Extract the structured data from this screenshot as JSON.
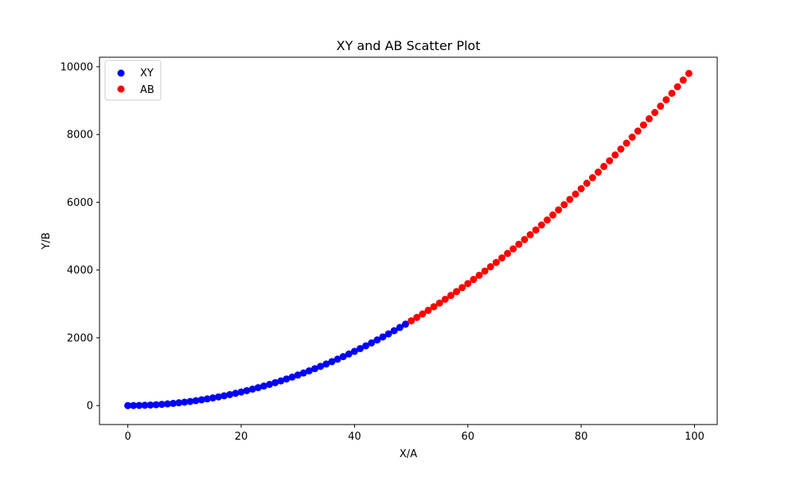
{
  "chart_data": {
    "type": "scatter",
    "title": "XY and AB Scatter Plot",
    "xlabel": "X/A",
    "ylabel": "Y/B",
    "xlim": [
      -5,
      104
    ],
    "ylim": [
      -560,
      10280
    ],
    "xticks": [
      0,
      20,
      40,
      60,
      80,
      100
    ],
    "yticks": [
      0,
      2000,
      4000,
      6000,
      8000,
      10000
    ],
    "grid": false,
    "legend_position": "top-left",
    "series": [
      {
        "name": "XY",
        "color": "#0000ff",
        "x_range": [
          0,
          49
        ],
        "y_formula": "y = x^2",
        "x": [
          0,
          1,
          2,
          3,
          4,
          5,
          6,
          7,
          8,
          9,
          10,
          11,
          12,
          13,
          14,
          15,
          16,
          17,
          18,
          19,
          20,
          21,
          22,
          23,
          24,
          25,
          26,
          27,
          28,
          29,
          30,
          31,
          32,
          33,
          34,
          35,
          36,
          37,
          38,
          39,
          40,
          41,
          42,
          43,
          44,
          45,
          46,
          47,
          48,
          49
        ],
        "y": [
          0,
          1,
          4,
          9,
          16,
          25,
          36,
          49,
          64,
          81,
          100,
          121,
          144,
          169,
          196,
          225,
          256,
          289,
          324,
          361,
          400,
          441,
          484,
          529,
          576,
          625,
          676,
          729,
          784,
          841,
          900,
          961,
          1024,
          1089,
          1156,
          1225,
          1296,
          1369,
          1444,
          1521,
          1600,
          1681,
          1764,
          1849,
          1936,
          2025,
          2116,
          2209,
          2304,
          2401
        ]
      },
      {
        "name": "AB",
        "color": "#ff0000",
        "x_range": [
          50,
          99
        ],
        "y_formula": "y = x^2",
        "x": [
          50,
          51,
          52,
          53,
          54,
          55,
          56,
          57,
          58,
          59,
          60,
          61,
          62,
          63,
          64,
          65,
          66,
          67,
          68,
          69,
          70,
          71,
          72,
          73,
          74,
          75,
          76,
          77,
          78,
          79,
          80,
          81,
          82,
          83,
          84,
          85,
          86,
          87,
          88,
          89,
          90,
          91,
          92,
          93,
          94,
          95,
          96,
          97,
          98,
          99
        ],
        "y": [
          2500,
          2601,
          2704,
          2809,
          2916,
          3025,
          3136,
          3249,
          3364,
          3481,
          3600,
          3721,
          3844,
          3969,
          4096,
          4225,
          4356,
          4489,
          4624,
          4761,
          4900,
          5041,
          5184,
          5329,
          5476,
          5625,
          5776,
          5929,
          6084,
          6241,
          6400,
          6561,
          6724,
          6889,
          7056,
          7225,
          7396,
          7569,
          7744,
          7921,
          8100,
          8281,
          8464,
          8649,
          8836,
          9025,
          9216,
          9409,
          9604,
          9801
        ]
      }
    ]
  }
}
